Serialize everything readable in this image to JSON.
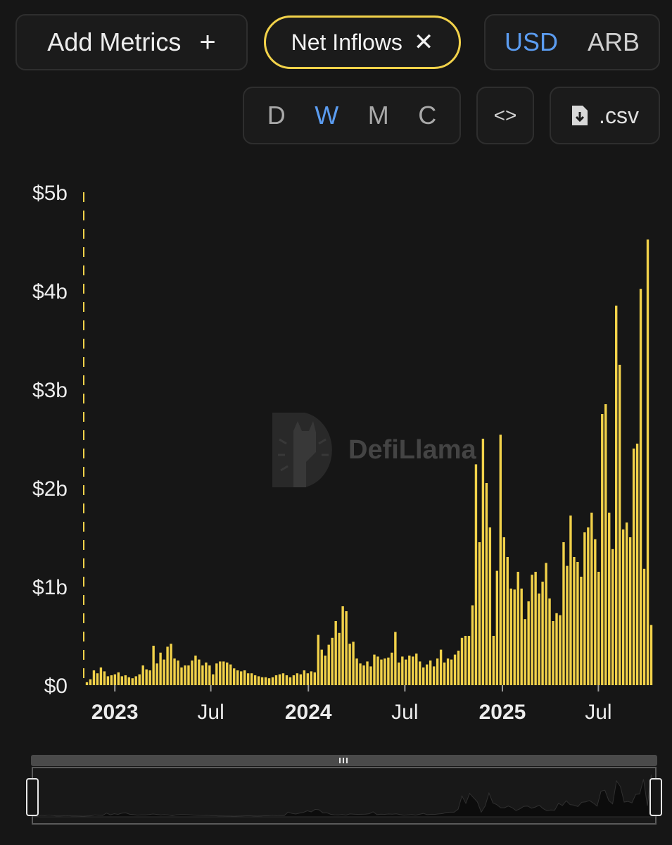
{
  "controls": {
    "add_metrics_label": "Add Metrics",
    "add_icon": "+",
    "active_metric_label": "Net Inflows",
    "remove_icon": "✕",
    "currency_options": [
      "USD",
      "ARB"
    ],
    "currency_selected": "USD",
    "period_options": [
      "D",
      "W",
      "M",
      "C"
    ],
    "period_selected": "W",
    "embed_icon": "<>",
    "csv_label": ".csv"
  },
  "watermark": {
    "text": "DefiLlama"
  },
  "colors": {
    "bar": "#f2d24a",
    "accent": "#5b9cf0",
    "background": "#161616"
  },
  "chart_data": {
    "type": "bar",
    "title": "",
    "xlabel": "",
    "ylabel": "",
    "ylim": [
      0,
      5000000000
    ],
    "y_ticks": [
      {
        "value": 0,
        "label": "$0"
      },
      {
        "value": 1000000000,
        "label": "$1b"
      },
      {
        "value": 2000000000,
        "label": "$2b"
      },
      {
        "value": 3000000000,
        "label": "$3b"
      },
      {
        "value": 4000000000,
        "label": "$4b"
      },
      {
        "value": 5000000000,
        "label": "$5b"
      }
    ],
    "x_ticks": [
      {
        "date": "2023-01-01",
        "label": "2023",
        "bold": true
      },
      {
        "date": "2023-07-01",
        "label": "Jul",
        "bold": false
      },
      {
        "date": "2024-01-01",
        "label": "2024",
        "bold": true
      },
      {
        "date": "2024-07-01",
        "label": "Jul",
        "bold": false
      },
      {
        "date": "2025-01-01",
        "label": "2025",
        "bold": true
      },
      {
        "date": "2025-07-01",
        "label": "Jul",
        "bold": false
      }
    ],
    "x_start": "2022-11-06",
    "x_end": "2025-10-12",
    "bar_interval": "weekly",
    "series": [
      {
        "values": [
          0.03,
          0.06,
          0.15,
          0.12,
          0.18,
          0.14,
          0.09,
          0.1,
          0.11,
          0.13,
          0.09,
          0.1,
          0.08,
          0.07,
          0.09,
          0.11,
          0.2,
          0.16,
          0.15,
          0.4,
          0.22,
          0.33,
          0.26,
          0.39,
          0.42,
          0.27,
          0.25,
          0.18,
          0.2,
          0.2,
          0.25,
          0.3,
          0.26,
          0.2,
          0.23,
          0.2,
          0.11,
          0.22,
          0.24,
          0.24,
          0.23,
          0.21,
          0.17,
          0.15,
          0.14,
          0.15,
          0.12,
          0.12,
          0.1,
          0.09,
          0.08,
          0.08,
          0.07,
          0.08,
          0.1,
          0.11,
          0.12,
          0.1,
          0.08,
          0.1,
          0.12,
          0.11,
          0.15,
          0.12,
          0.14,
          0.13,
          0.51,
          0.36,
          0.3,
          0.41,
          0.48,
          0.65,
          0.53,
          0.8,
          0.75,
          0.42,
          0.44,
          0.27,
          0.22,
          0.2,
          0.24,
          0.19,
          0.31,
          0.29,
          0.26,
          0.27,
          0.28,
          0.33,
          0.54,
          0.23,
          0.29,
          0.26,
          0.3,
          0.29,
          0.32,
          0.24,
          0.18,
          0.21,
          0.25,
          0.19,
          0.27,
          0.36,
          0.23,
          0.27,
          0.26,
          0.31,
          0.35,
          0.48,
          0.5,
          0.5,
          0.81,
          2.24,
          1.45,
          2.5,
          2.05,
          1.6,
          0.5,
          1.16,
          2.54,
          1.5,
          1.3,
          0.98,
          0.97,
          1.15,
          0.98,
          0.67,
          0.85,
          1.12,
          1.15,
          0.93,
          1.05,
          1.24,
          0.88,
          0.65,
          0.73,
          0.71,
          1.45,
          1.21,
          1.72,
          1.3,
          1.25,
          1.1,
          1.55,
          1.6,
          1.75,
          1.48,
          1.15,
          2.75,
          2.85,
          1.75,
          1.38,
          3.85,
          3.25,
          1.58,
          1.65,
          1.5,
          2.4,
          2.45,
          4.02,
          1.18,
          4.52,
          0.61
        ]
      }
    ]
  }
}
